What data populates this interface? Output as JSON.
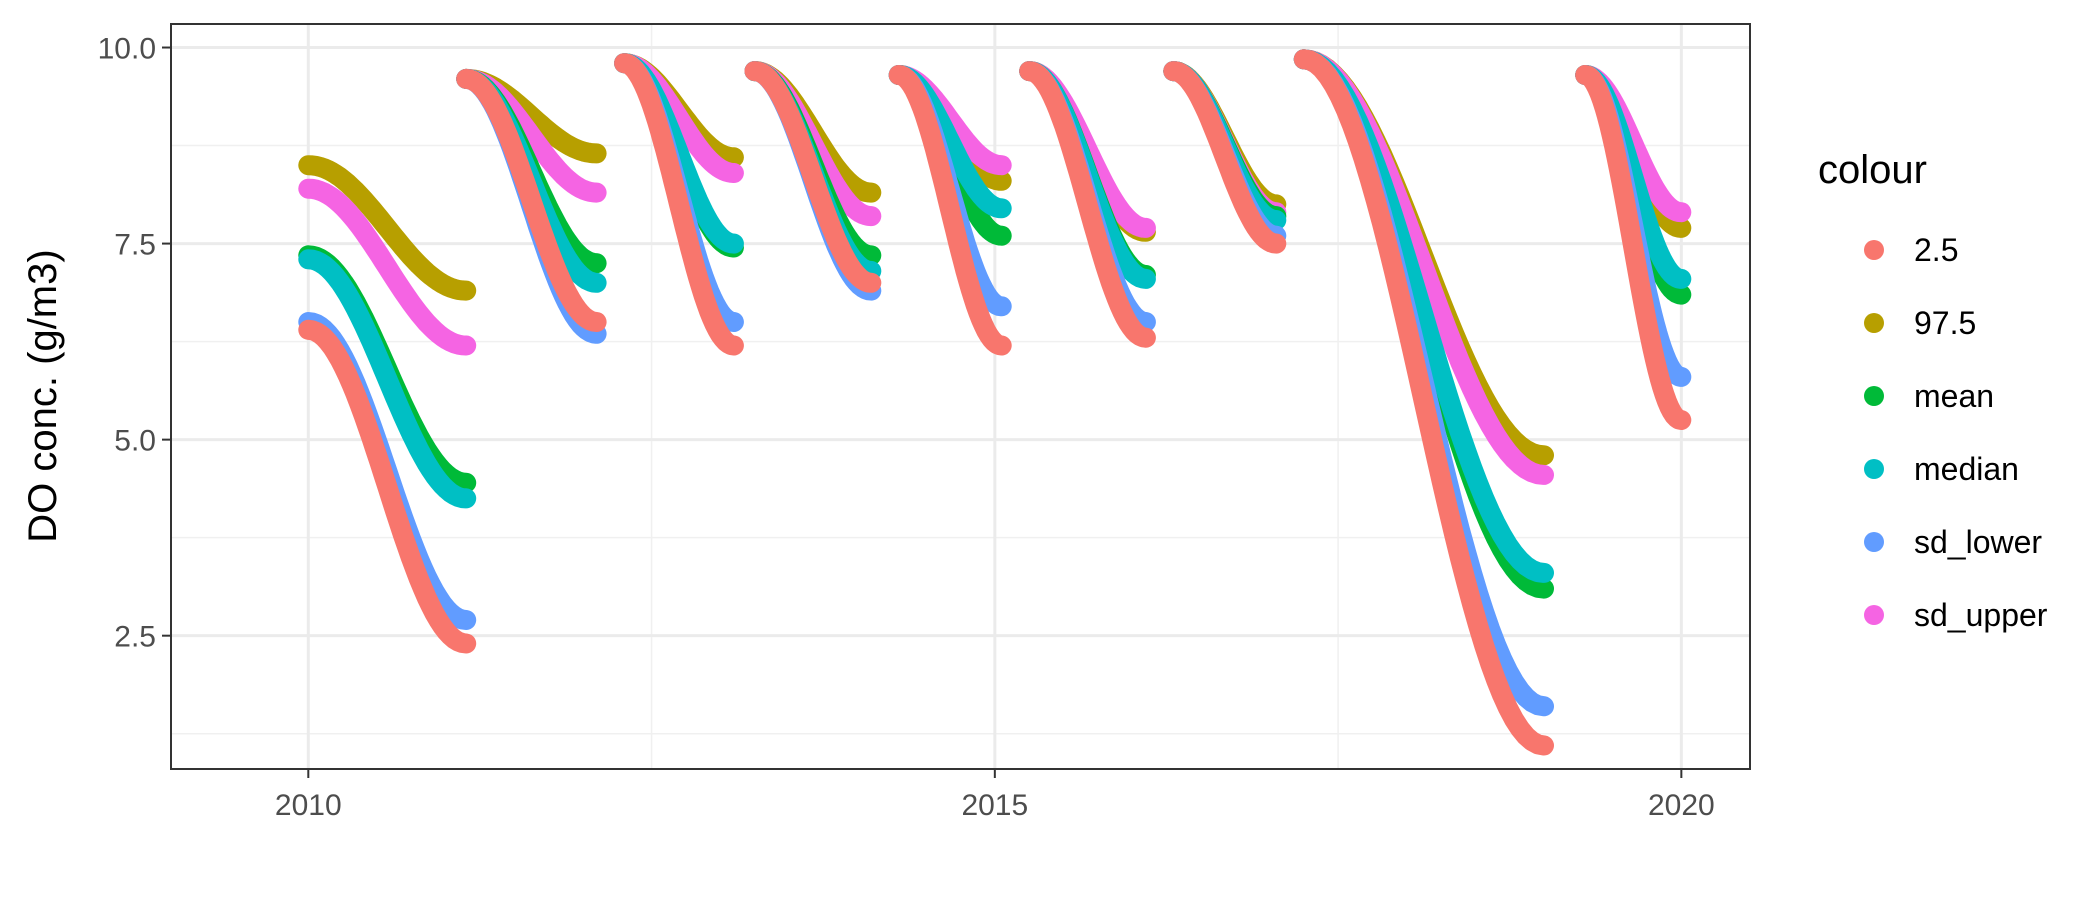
{
  "chart_data": {
    "type": "line",
    "title": "",
    "xlabel": "",
    "ylabel": "DO conc. (g/m3)",
    "xlim": [
      2009.0,
      2020.5
    ],
    "ylim": [
      0.8,
      10.3
    ],
    "x_ticks": [
      2010,
      2015,
      2020
    ],
    "x_tick_labels": [
      "2010",
      "2015",
      "2020"
    ],
    "y_ticks": [
      2.5,
      5.0,
      7.5,
      10.0
    ],
    "y_tick_labels": [
      "2.5",
      "5.0",
      "7.5",
      "10.0"
    ],
    "grid": true,
    "legend": {
      "title": "colour",
      "position": "right"
    },
    "segments": [
      {
        "x": [
          2010.0,
          2011.15
        ]
      },
      {
        "x": [
          2011.15,
          2012.1
        ]
      },
      {
        "x": [
          2012.3,
          2013.1
        ]
      },
      {
        "x": [
          2013.25,
          2014.1
        ]
      },
      {
        "x": [
          2014.3,
          2015.05
        ]
      },
      {
        "x": [
          2015.25,
          2016.1
        ]
      },
      {
        "x": [
          2016.3,
          2017.05
        ]
      },
      {
        "x": [
          2017.25,
          2019.0
        ]
      },
      {
        "x": [
          2019.3,
          2020.0
        ]
      }
    ],
    "series": [
      {
        "name": "2.5",
        "color": "#F8766D",
        "values": [
          [
            6.4,
            2.4
          ],
          [
            9.6,
            6.5
          ],
          [
            9.8,
            6.2
          ],
          [
            9.7,
            7.0
          ],
          [
            9.65,
            6.2
          ],
          [
            9.7,
            6.3
          ],
          [
            9.7,
            7.5
          ],
          [
            9.85,
            1.1
          ],
          [
            9.65,
            5.25
          ]
        ]
      },
      {
        "name": "97.5",
        "color": "#B79F00",
        "values": [
          [
            8.5,
            6.9
          ],
          [
            9.6,
            8.65
          ],
          [
            9.8,
            8.6
          ],
          [
            9.7,
            8.15
          ],
          [
            9.65,
            8.3
          ],
          [
            9.7,
            7.65
          ],
          [
            9.7,
            8.0
          ],
          [
            9.85,
            4.8
          ],
          [
            9.65,
            7.7
          ]
        ]
      },
      {
        "name": "mean",
        "color": "#00BA38",
        "values": [
          [
            7.35,
            4.45
          ],
          [
            9.6,
            7.25
          ],
          [
            9.8,
            7.45
          ],
          [
            9.7,
            7.35
          ],
          [
            9.65,
            7.6
          ],
          [
            9.7,
            7.1
          ],
          [
            9.7,
            7.85
          ],
          [
            9.85,
            3.1
          ],
          [
            9.65,
            6.85
          ]
        ]
      },
      {
        "name": "median",
        "color": "#00BFC4",
        "values": [
          [
            7.3,
            4.25
          ],
          [
            9.6,
            7.0
          ],
          [
            9.8,
            7.5
          ],
          [
            9.7,
            7.15
          ],
          [
            9.65,
            7.95
          ],
          [
            9.7,
            7.05
          ],
          [
            9.7,
            7.8
          ],
          [
            9.85,
            3.3
          ],
          [
            9.65,
            7.05
          ]
        ]
      },
      {
        "name": "sd_lower",
        "color": "#619CFF",
        "values": [
          [
            6.5,
            2.7
          ],
          [
            9.6,
            6.35
          ],
          [
            9.8,
            6.5
          ],
          [
            9.7,
            6.9
          ],
          [
            9.65,
            6.7
          ],
          [
            9.7,
            6.5
          ],
          [
            9.7,
            7.6
          ],
          [
            9.85,
            1.6
          ],
          [
            9.65,
            5.8
          ]
        ]
      },
      {
        "name": "sd_upper",
        "color": "#F564E3",
        "values": [
          [
            8.2,
            6.2
          ],
          [
            9.6,
            8.15
          ],
          [
            9.8,
            8.4
          ],
          [
            9.7,
            7.85
          ],
          [
            9.65,
            8.5
          ],
          [
            9.7,
            7.7
          ],
          [
            9.7,
            7.9
          ],
          [
            9.85,
            4.55
          ],
          [
            9.65,
            7.9
          ]
        ]
      }
    ]
  }
}
